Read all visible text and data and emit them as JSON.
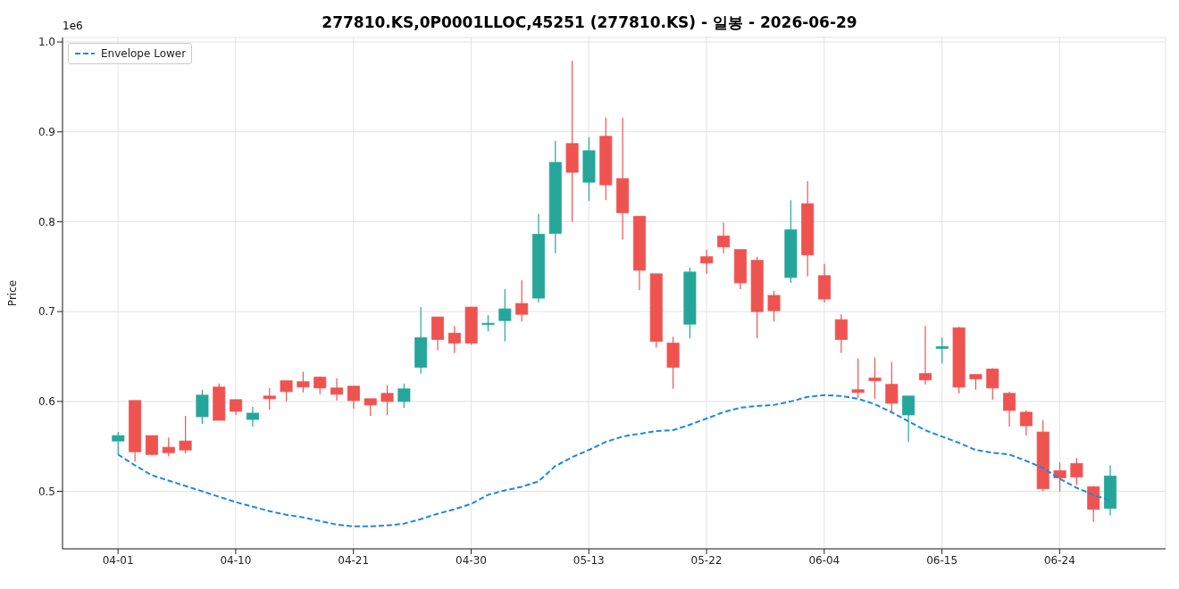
{
  "chart_data": {
    "type": "candlestick",
    "title": "277810.KS,0P0001LLOC,45251 (277810.KS) - 일봉 - 2026-06-29",
    "ylabel": "Price",
    "annotations": [
      "1e6"
    ],
    "categories": [
      "04-01",
      null,
      null,
      null,
      null,
      null,
      null,
      "04-10",
      null,
      null,
      null,
      null,
      null,
      null,
      "04-21",
      null,
      null,
      null,
      null,
      null,
      null,
      "04-30",
      null,
      null,
      null,
      null,
      null,
      null,
      "05-13",
      null,
      null,
      null,
      null,
      null,
      null,
      "05-22",
      null,
      null,
      null,
      null,
      null,
      null,
      "06-04",
      null,
      null,
      null,
      null,
      null,
      null,
      "06-15",
      null,
      null,
      null,
      null,
      null,
      null,
      "06-24",
      null,
      null,
      null
    ],
    "ohlc": [
      [
        0.556,
        0.566,
        0.541,
        0.562
      ],
      [
        0.601,
        0.601,
        0.533,
        0.544
      ],
      [
        0.562,
        0.562,
        0.54,
        0.541
      ],
      [
        0.549,
        0.56,
        0.539,
        0.543
      ],
      [
        0.556,
        0.584,
        0.542,
        0.546
      ],
      [
        0.583,
        0.613,
        0.575,
        0.607
      ],
      [
        0.616,
        0.62,
        0.579,
        0.579
      ],
      [
        0.602,
        0.602,
        0.585,
        0.589
      ],
      [
        0.58,
        0.594,
        0.572,
        0.587
      ],
      [
        0.606,
        0.615,
        0.591,
        0.603
      ],
      [
        0.623,
        0.623,
        0.6,
        0.611
      ],
      [
        0.622,
        0.633,
        0.61,
        0.616
      ],
      [
        0.627,
        0.628,
        0.608,
        0.615
      ],
      [
        0.615,
        0.626,
        0.601,
        0.608
      ],
      [
        0.617,
        0.617,
        0.592,
        0.601
      ],
      [
        0.603,
        0.603,
        0.584,
        0.596
      ],
      [
        0.609,
        0.618,
        0.585,
        0.6
      ],
      [
        0.6,
        0.62,
        0.593,
        0.614
      ],
      [
        0.638,
        0.705,
        0.631,
        0.671
      ],
      [
        0.694,
        0.694,
        0.657,
        0.669
      ],
      [
        0.676,
        0.684,
        0.654,
        0.665
      ],
      [
        0.705,
        0.705,
        0.663,
        0.665
      ],
      [
        0.686,
        0.696,
        0.678,
        0.687
      ],
      [
        0.69,
        0.725,
        0.667,
        0.703
      ],
      [
        0.709,
        0.735,
        0.689,
        0.697
      ],
      [
        0.715,
        0.809,
        0.71,
        0.786
      ],
      [
        0.787,
        0.89,
        0.765,
        0.866
      ],
      [
        0.887,
        0.979,
        0.8,
        0.855
      ],
      [
        0.844,
        0.894,
        0.823,
        0.879
      ],
      [
        0.895,
        0.916,
        0.824,
        0.841
      ],
      [
        0.848,
        0.916,
        0.78,
        0.81
      ],
      [
        0.806,
        0.806,
        0.724,
        0.746
      ],
      [
        0.742,
        0.742,
        0.66,
        0.667
      ],
      [
        0.665,
        0.672,
        0.614,
        0.638
      ],
      [
        0.686,
        0.749,
        0.67,
        0.744
      ],
      [
        0.761,
        0.769,
        0.742,
        0.754
      ],
      [
        0.784,
        0.799,
        0.765,
        0.772
      ],
      [
        0.769,
        0.769,
        0.725,
        0.732
      ],
      [
        0.757,
        0.761,
        0.67,
        0.7
      ],
      [
        0.718,
        0.723,
        0.689,
        0.701
      ],
      [
        0.738,
        0.824,
        0.732,
        0.791
      ],
      [
        0.82,
        0.845,
        0.739,
        0.763
      ],
      [
        0.74,
        0.753,
        0.71,
        0.714
      ],
      [
        0.691,
        0.697,
        0.654,
        0.669
      ],
      [
        0.613,
        0.648,
        0.604,
        0.61
      ],
      [
        0.626,
        0.649,
        0.603,
        0.623
      ],
      [
        0.619,
        0.644,
        0.587,
        0.598
      ],
      [
        0.585,
        0.606,
        0.555,
        0.606
      ],
      [
        0.631,
        0.684,
        0.619,
        0.624
      ],
      [
        0.659,
        0.671,
        0.642,
        0.661
      ],
      [
        0.682,
        0.683,
        0.609,
        0.616
      ],
      [
        0.63,
        0.63,
        0.613,
        0.625
      ],
      [
        0.636,
        0.637,
        0.602,
        0.615
      ],
      [
        0.609,
        0.611,
        0.572,
        0.59
      ],
      [
        0.588,
        0.59,
        0.562,
        0.573
      ],
      [
        0.566,
        0.579,
        0.5,
        0.503
      ],
      [
        0.523,
        0.532,
        0.5,
        0.515
      ],
      [
        0.531,
        0.537,
        0.507,
        0.516
      ],
      [
        0.505,
        0.506,
        0.466,
        0.48
      ],
      [
        0.481,
        0.529,
        0.473,
        0.517
      ]
    ],
    "colors": [
      "#26a69a",
      "#ef5350",
      "#ef5350",
      "#ef5350",
      "#ef5350",
      "#26a69a",
      "#ef5350",
      "#ef5350",
      "#26a69a",
      "#ef5350",
      "#ef5350",
      "#ef5350",
      "#ef5350",
      "#ef5350",
      "#ef5350",
      "#ef5350",
      "#ef5350",
      "#26a69a",
      "#26a69a",
      "#ef5350",
      "#ef5350",
      "#ef5350",
      "#26a69a",
      "#26a69a",
      "#ef5350",
      "#26a69a",
      "#26a69a",
      "#ef5350",
      "#26a69a",
      "#ef5350",
      "#ef5350",
      "#ef5350",
      "#ef5350",
      "#ef5350",
      "#26a69a",
      "#ef5350",
      "#ef5350",
      "#ef5350",
      "#ef5350",
      "#ef5350",
      "#26a69a",
      "#ef5350",
      "#ef5350",
      "#ef5350",
      "#ef5350",
      "#ef5350",
      "#ef5350",
      "#26a69a",
      "#ef5350",
      "#26a69a",
      "#ef5350",
      "#ef5350",
      "#ef5350",
      "#ef5350",
      "#ef5350",
      "#ef5350",
      "#ef5350",
      "#ef5350",
      "#ef5350",
      "#26a69a"
    ],
    "series": [
      {
        "name": "Envelope Lower",
        "type": "line",
        "color": "#1e88e5",
        "line_style": "dashed",
        "values": [
          0.541,
          0.529,
          0.518,
          0.512,
          0.506,
          0.5,
          0.494,
          0.488,
          0.483,
          0.478,
          0.474,
          0.471,
          0.467,
          0.463,
          0.461,
          0.461,
          0.462,
          0.464,
          0.469,
          0.475,
          0.48,
          0.486,
          0.496,
          0.501,
          0.505,
          0.511,
          0.528,
          0.538,
          0.546,
          0.555,
          0.561,
          0.564,
          0.567,
          0.568,
          0.574,
          0.581,
          0.588,
          0.593,
          0.595,
          0.596,
          0.6,
          0.605,
          0.607,
          0.606,
          0.603,
          0.597,
          0.588,
          0.578,
          0.568,
          0.561,
          0.554,
          0.546,
          0.543,
          0.541,
          0.534,
          0.526,
          0.514,
          0.504,
          0.496,
          0.49
        ]
      }
    ],
    "ylim": [
      0.436,
      1.005
    ],
    "yticks": [
      0.5,
      0.6,
      0.7,
      0.8,
      0.9,
      {
        "value": 1,
        "label": "1.0"
      }
    ],
    "grid": true,
    "legend": "top left"
  }
}
